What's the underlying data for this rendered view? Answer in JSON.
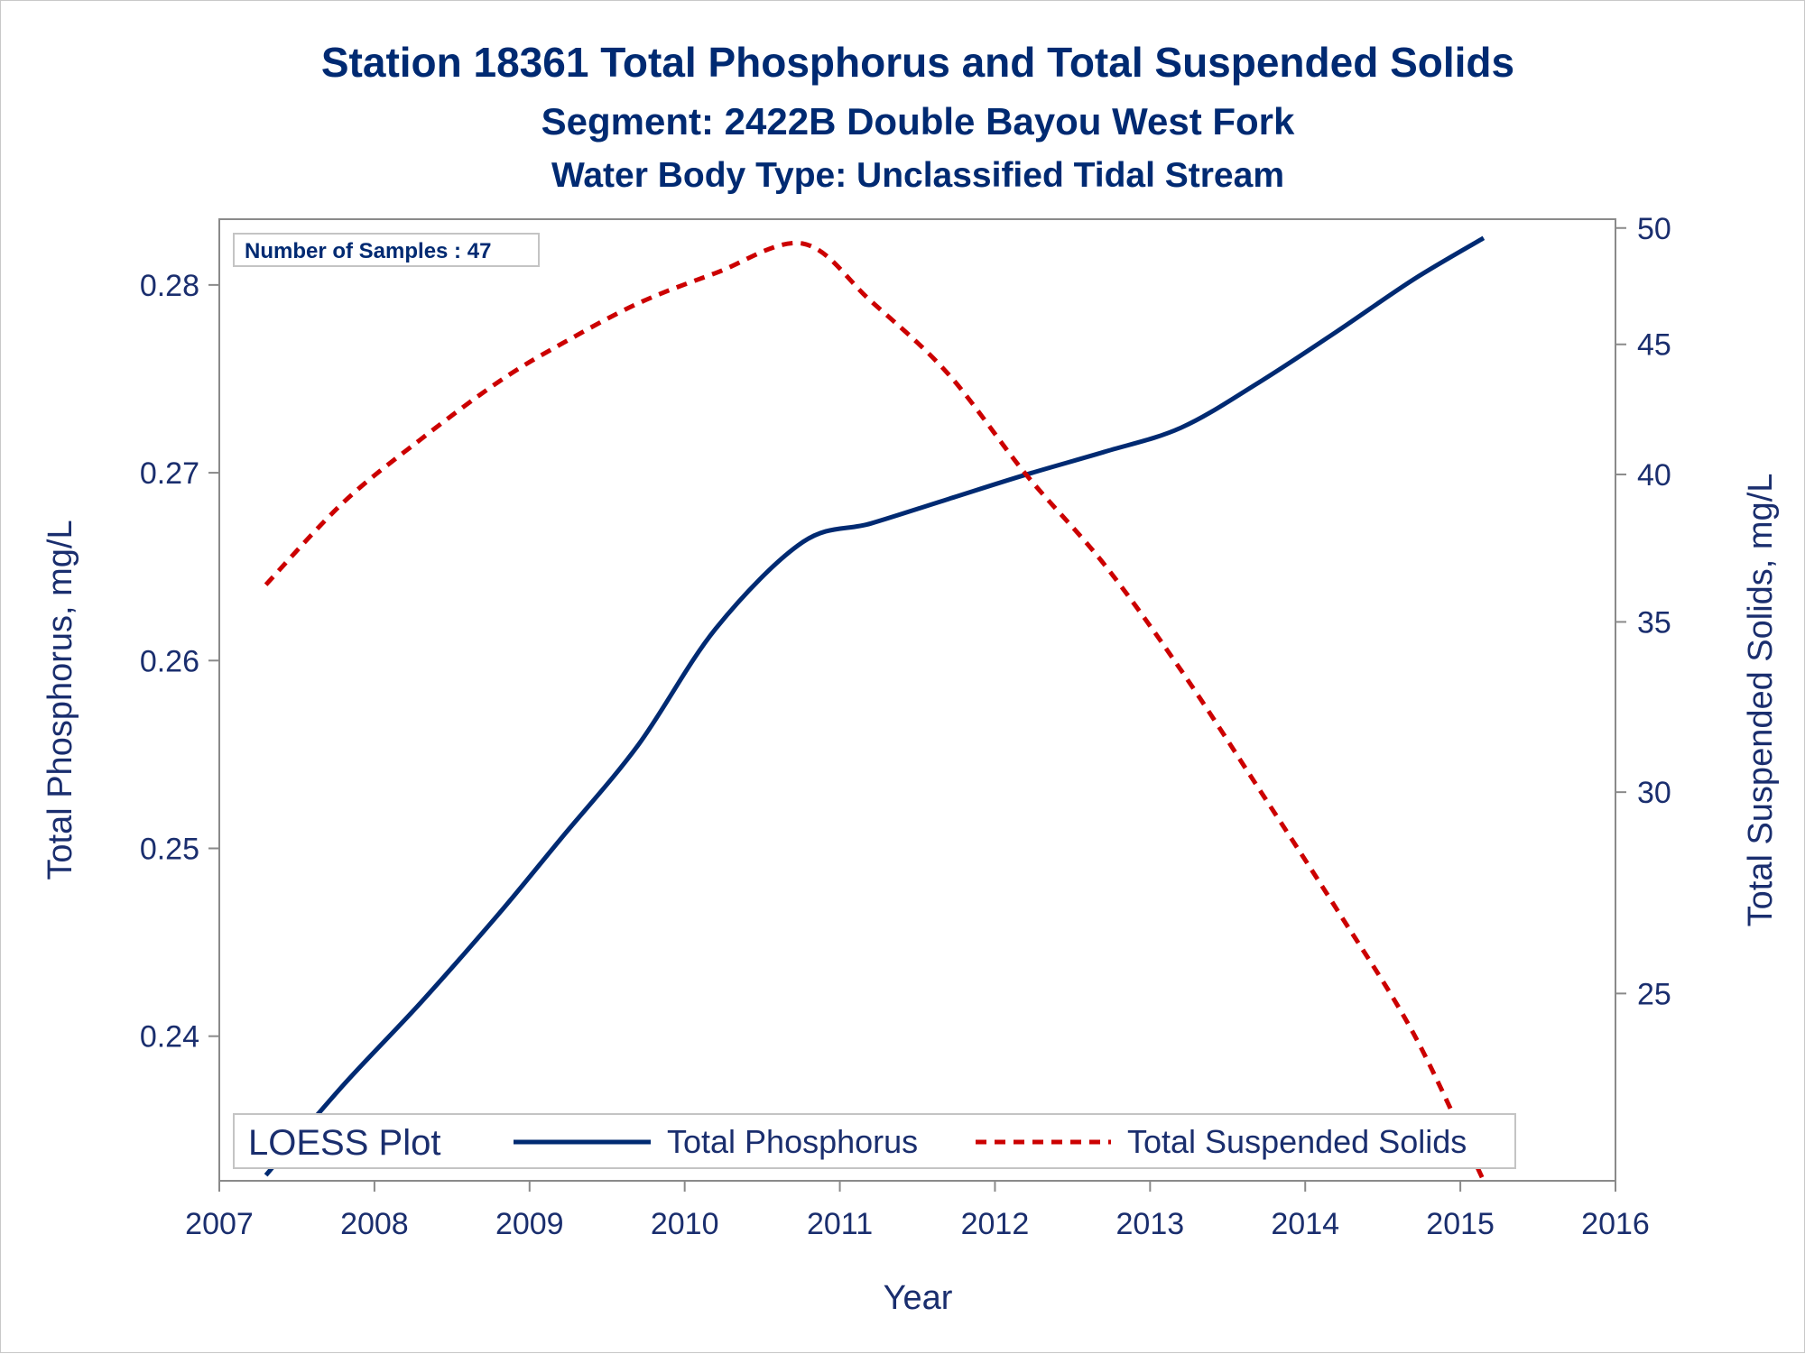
{
  "chart_data": {
    "type": "line",
    "title": "Station 18361  Total Phosphorus and Total Suspended Solids",
    "subtitle": "Segment: 2422B  Double Bayou West Fork",
    "subtitle2": "Water Body Type: Unclassified Tidal Stream",
    "xlabel": "Year",
    "ylabel": "Total Phosphorus, mg/L",
    "y2label": "Total Suspended Solids, mg/L",
    "xlim": [
      2007,
      2016
    ],
    "ylim": [
      0.2323,
      0.2835
    ],
    "y2lim": [
      21.1,
      50.4
    ],
    "y2_scale": "log",
    "x_ticks": [
      "2007",
      "2008",
      "2009",
      "2010",
      "2011",
      "2012",
      "2013",
      "2014",
      "2015",
      "2016"
    ],
    "y_ticks": [
      0.24,
      0.25,
      0.26,
      0.27,
      0.28
    ],
    "y_tick_labels": [
      "0.24",
      "0.25",
      "0.26",
      "0.27",
      "0.28"
    ],
    "y2_ticks": [
      25,
      30,
      35,
      40,
      45,
      50
    ],
    "y2_tick_labels": [
      "25",
      "30",
      "35",
      "40",
      "45",
      "50"
    ],
    "inset_text": "Number of Samples : 47",
    "legend": {
      "title": "LOESS Plot",
      "placement": "bottom-inside"
    },
    "series": [
      {
        "name": "Total Phosphorus",
        "axis": "left",
        "color": "#002a72",
        "dash": "solid",
        "x": [
          2007.3,
          2007.8,
          2008.3,
          2008.8,
          2009.2,
          2009.7,
          2010.2,
          2010.76,
          2011.2,
          2011.7,
          2012.2,
          2012.7,
          2013.2,
          2013.7,
          2014.2,
          2014.7,
          2015.15
        ],
        "y": [
          0.2326,
          0.2374,
          0.2418,
          0.2465,
          0.2505,
          0.2555,
          0.2617,
          0.2663,
          0.2673,
          0.2686,
          0.2699,
          0.2711,
          0.2724,
          0.2748,
          0.2775,
          0.2803,
          0.2825
        ]
      },
      {
        "name": "Total Suspended Solids",
        "axis": "right",
        "color": "#cc0000",
        "dash": "dashed",
        "x": [
          2007.3,
          2007.8,
          2008.3,
          2008.8,
          2009.2,
          2009.7,
          2010.2,
          2010.76,
          2011.2,
          2011.7,
          2012.2,
          2012.7,
          2013.2,
          2013.7,
          2014.2,
          2014.7,
          2015.15
        ],
        "y": [
          36.2,
          39.0,
          41.3,
          43.5,
          45.0,
          46.7,
          48.0,
          49.3,
          46.8,
          43.8,
          40.0,
          36.9,
          33.5,
          30.1,
          27.0,
          24.1,
          21.1
        ]
      }
    ]
  }
}
